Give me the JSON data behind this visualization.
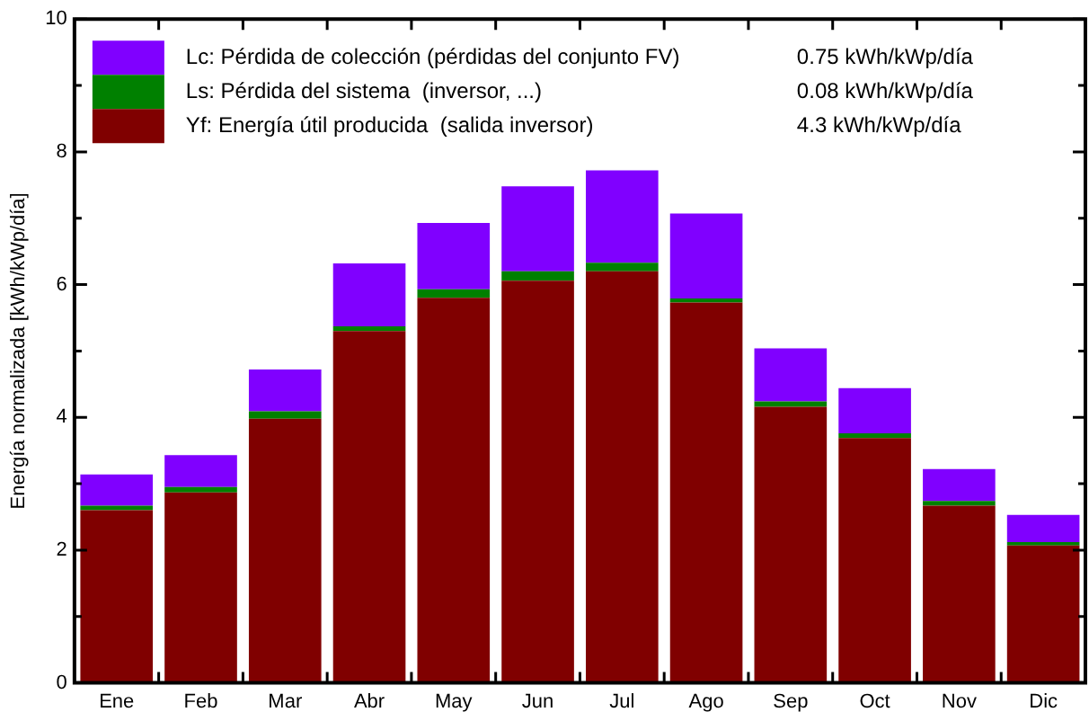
{
  "chart_data": {
    "type": "bar",
    "stacked": true,
    "ylabel": "Energía normalizada [kWh/kWp/día]",
    "categories": [
      "Ene",
      "Feb",
      "Mar",
      "Abr",
      "May",
      "Jun",
      "Jul",
      "Ago",
      "Sep",
      "Oct",
      "Nov",
      "Dic"
    ],
    "series": [
      {
        "name": "Yf: Energía útil producida  (salida inversor)",
        "color": "#800000",
        "values": [
          2.6,
          2.87,
          3.98,
          5.3,
          5.8,
          6.06,
          6.2,
          5.73,
          4.16,
          3.69,
          2.67,
          2.07
        ]
      },
      {
        "name": "Ls: Pérdida del sistema  (inversor, ...)",
        "color": "#008000",
        "values": [
          0.07,
          0.08,
          0.11,
          0.07,
          0.13,
          0.14,
          0.13,
          0.06,
          0.08,
          0.07,
          0.07,
          0.05
        ]
      },
      {
        "name": "Lc: Pérdida de colección (pérdidas del conjunto FV)",
        "color": "#8000ff",
        "values": [
          0.47,
          0.48,
          0.63,
          0.95,
          1.0,
          1.28,
          1.39,
          1.28,
          0.8,
          0.68,
          0.48,
          0.41
        ]
      }
    ],
    "ylim": [
      0,
      10
    ],
    "yticks": [
      0,
      {
        "value": 1,
        "label": null
      },
      2,
      {
        "value": 3,
        "label": null
      },
      4,
      {
        "value": 5,
        "label": null
      },
      6,
      {
        "value": 7,
        "label": null
      },
      8,
      {
        "value": 9,
        "label": null
      },
      10
    ],
    "grid": false,
    "legend": "top left",
    "annotations": [
      "0.75 kWh/kWp/día",
      "0.08 kWh/kWp/día",
      "4.3 kWh/kWp/día"
    ]
  }
}
